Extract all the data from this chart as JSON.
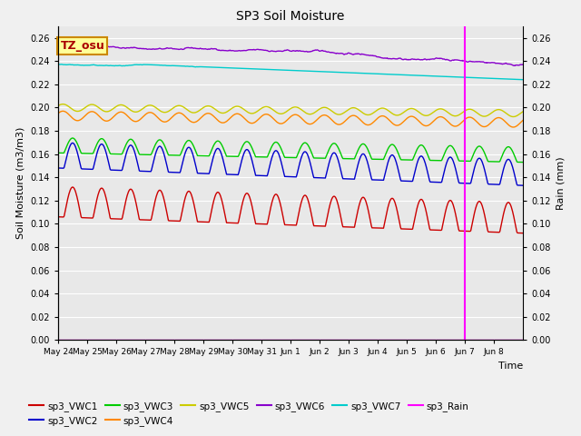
{
  "title": "SP3 Soil Moisture",
  "xlabel": "Time",
  "ylabel_left": "Soil Moisture (m3/m3)",
  "ylabel_right": "Rain (mm)",
  "ylim": [
    0.0,
    0.27
  ],
  "yticks": [
    0.0,
    0.02,
    0.04,
    0.06,
    0.08,
    0.1,
    0.12,
    0.14,
    0.16,
    0.18,
    0.2,
    0.22,
    0.24,
    0.26
  ],
  "n_days": 16,
  "vline_day": 14,
  "colors": {
    "VWC1": "#cc0000",
    "VWC2": "#0000cc",
    "VWC3": "#00cc00",
    "VWC4": "#ff8800",
    "VWC5": "#cccc00",
    "VWC6": "#8800cc",
    "VWC7": "#00cccc",
    "Rain": "#ff00ff"
  },
  "label_box": {
    "text": "TZ_osu",
    "facecolor": "#ffff99",
    "edgecolor": "#cc8800"
  },
  "fig_bg": "#f0f0f0",
  "plot_bg": "#e8e8e8",
  "grid_color": "#ffffff",
  "xtick_labels": [
    "May 24",
    "May 25",
    "May 26",
    "May 27",
    "May 28",
    "May 29",
    "May 30",
    "May 31",
    "Jun 1",
    "Jun 2",
    "Jun 3",
    "Jun 4",
    "Jun 5",
    "Jun 6",
    "Jun 7",
    "Jun 8"
  ],
  "legend_labels": [
    "sp3_VWC1",
    "sp3_VWC2",
    "sp3_VWC3",
    "sp3_VWC4",
    "sp3_VWC5",
    "sp3_VWC6",
    "sp3_VWC7",
    "sp3_Rain"
  ]
}
